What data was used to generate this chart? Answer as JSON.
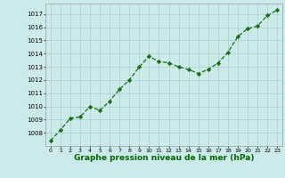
{
  "x": [
    0,
    1,
    2,
    3,
    4,
    5,
    6,
    7,
    8,
    9,
    10,
    11,
    12,
    13,
    14,
    15,
    16,
    17,
    18,
    19,
    20,
    21,
    22,
    23
  ],
  "y": [
    1007.4,
    1008.2,
    1009.1,
    1009.2,
    1010.0,
    1009.7,
    1010.4,
    1011.3,
    1012.0,
    1013.0,
    1013.8,
    1013.4,
    1013.3,
    1013.0,
    1012.8,
    1012.5,
    1012.8,
    1013.3,
    1014.1,
    1015.3,
    1015.9,
    1016.1,
    1016.9,
    1017.3
  ],
  "line_color": "#1a6b1a",
  "marker": "D",
  "marker_size": 2.2,
  "bg_color": "#cceaea",
  "grid_color": "#aacccc",
  "xlabel": "Graphe pression niveau de la mer (hPa)",
  "xlabel_color": "#006600",
  "xlabel_fontsize": 6.5,
  "ytick_min": 1008,
  "ytick_max": 1017,
  "ytick_step": 1,
  "ylim_min": 1007.0,
  "ylim_max": 1017.8,
  "xlim_min": -0.5,
  "xlim_max": 23.5,
  "ytick_fontsize": 5.0,
  "xtick_fontsize": 4.5,
  "line_width": 0.9
}
